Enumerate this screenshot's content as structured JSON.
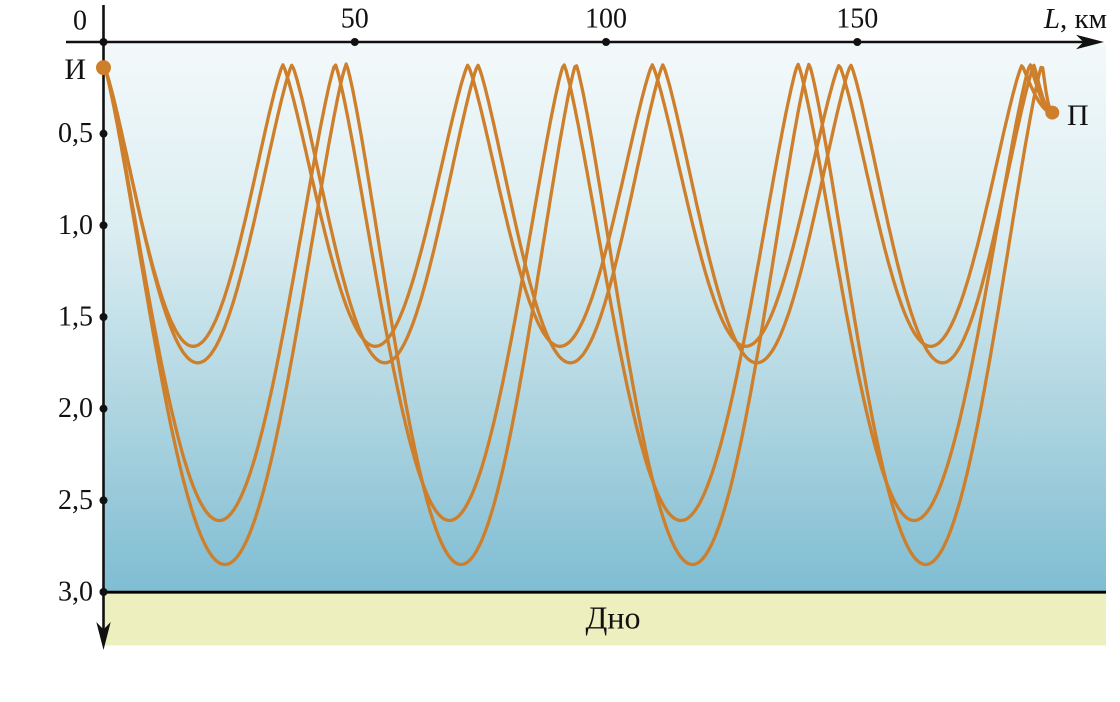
{
  "axes": {
    "x": {
      "origin_label": "0",
      "label_italic": "L",
      "label_suffix": ", км",
      "ticks": [
        {
          "value": 50,
          "label": "50"
        },
        {
          "value": 100,
          "label": "100"
        },
        {
          "value": 150,
          "label": "150"
        }
      ]
    },
    "y": {
      "ticks": [
        {
          "value": 0.5,
          "label": "0,5"
        },
        {
          "value": 1.0,
          "label": "1,0"
        },
        {
          "value": 1.5,
          "label": "1,5"
        },
        {
          "value": 2.0,
          "label": "2,0"
        },
        {
          "value": 2.5,
          "label": "2,5"
        },
        {
          "value": 3.0,
          "label": "3,0"
        }
      ]
    }
  },
  "markers": {
    "source": {
      "label": "И",
      "L_km": 0,
      "depth_km": 0.14
    },
    "receiver": {
      "label": "П",
      "L_km": 188.8,
      "depth_km": 0.385
    }
  },
  "seafloor": {
    "label": "Дно",
    "depth_km": 3.0
  },
  "colors": {
    "ray": "#CE7F2B",
    "axis": "#111111",
    "water_top": "#F3F9FA",
    "water_upper": "#DCEEF2",
    "water_lower": "#A7D1DE",
    "water_bottom": "#7FBDD3",
    "seafloor_band": "#EDEFBE",
    "seafloor_line": "#000000",
    "text": "#111111"
  },
  "chart_data": {
    "type": "line",
    "xlabel": "L, км",
    "xlim": [
      0,
      199.5
    ],
    "ylim": [
      0,
      3.3
    ],
    "x_ticks": [
      0,
      50,
      100,
      150
    ],
    "y_ticks": [
      0.5,
      1.0,
      1.5,
      2.0,
      2.5,
      3.0
    ],
    "grid": false,
    "legend": false,
    "axis_orientation": "depth-down",
    "source": {
      "label": "И",
      "L_km": 0,
      "depth_km": 0.14
    },
    "receiver": {
      "label": "П",
      "L_km": 188.8,
      "depth_km": 0.385
    },
    "bottom_depth_km": 3.0,
    "bottom_label": "Дно",
    "shape_exponent": 1.22,
    "rays": [
      {
        "name": "flat-ray-1",
        "apex_depth_km": 0.125,
        "turning_depth_km": 1.66,
        "cycle_km": 36.8,
        "apexes_L_km": [
          35.7,
          72.5,
          109.2,
          146.4,
          182.8
        ]
      },
      {
        "name": "flat-ray-2",
        "apex_depth_km": 0.125,
        "turning_depth_km": 1.75,
        "cycle_km": 37.0,
        "apexes_L_km": [
          37.5,
          74.5,
          111.3,
          148.7,
          185.2
        ]
      },
      {
        "name": "steep-ray-1",
        "apex_depth_km": 0.12,
        "turning_depth_km": 2.61,
        "cycle_km": 46.2,
        "apexes_L_km": [
          46.1,
          91.6,
          138.2,
          184.4
        ]
      },
      {
        "name": "steep-ray-2",
        "apex_depth_km": 0.12,
        "turning_depth_km": 2.85,
        "cycle_km": 46.4,
        "apexes_L_km": [
          48.3,
          94.0,
          140.4,
          186.8
        ]
      }
    ]
  }
}
